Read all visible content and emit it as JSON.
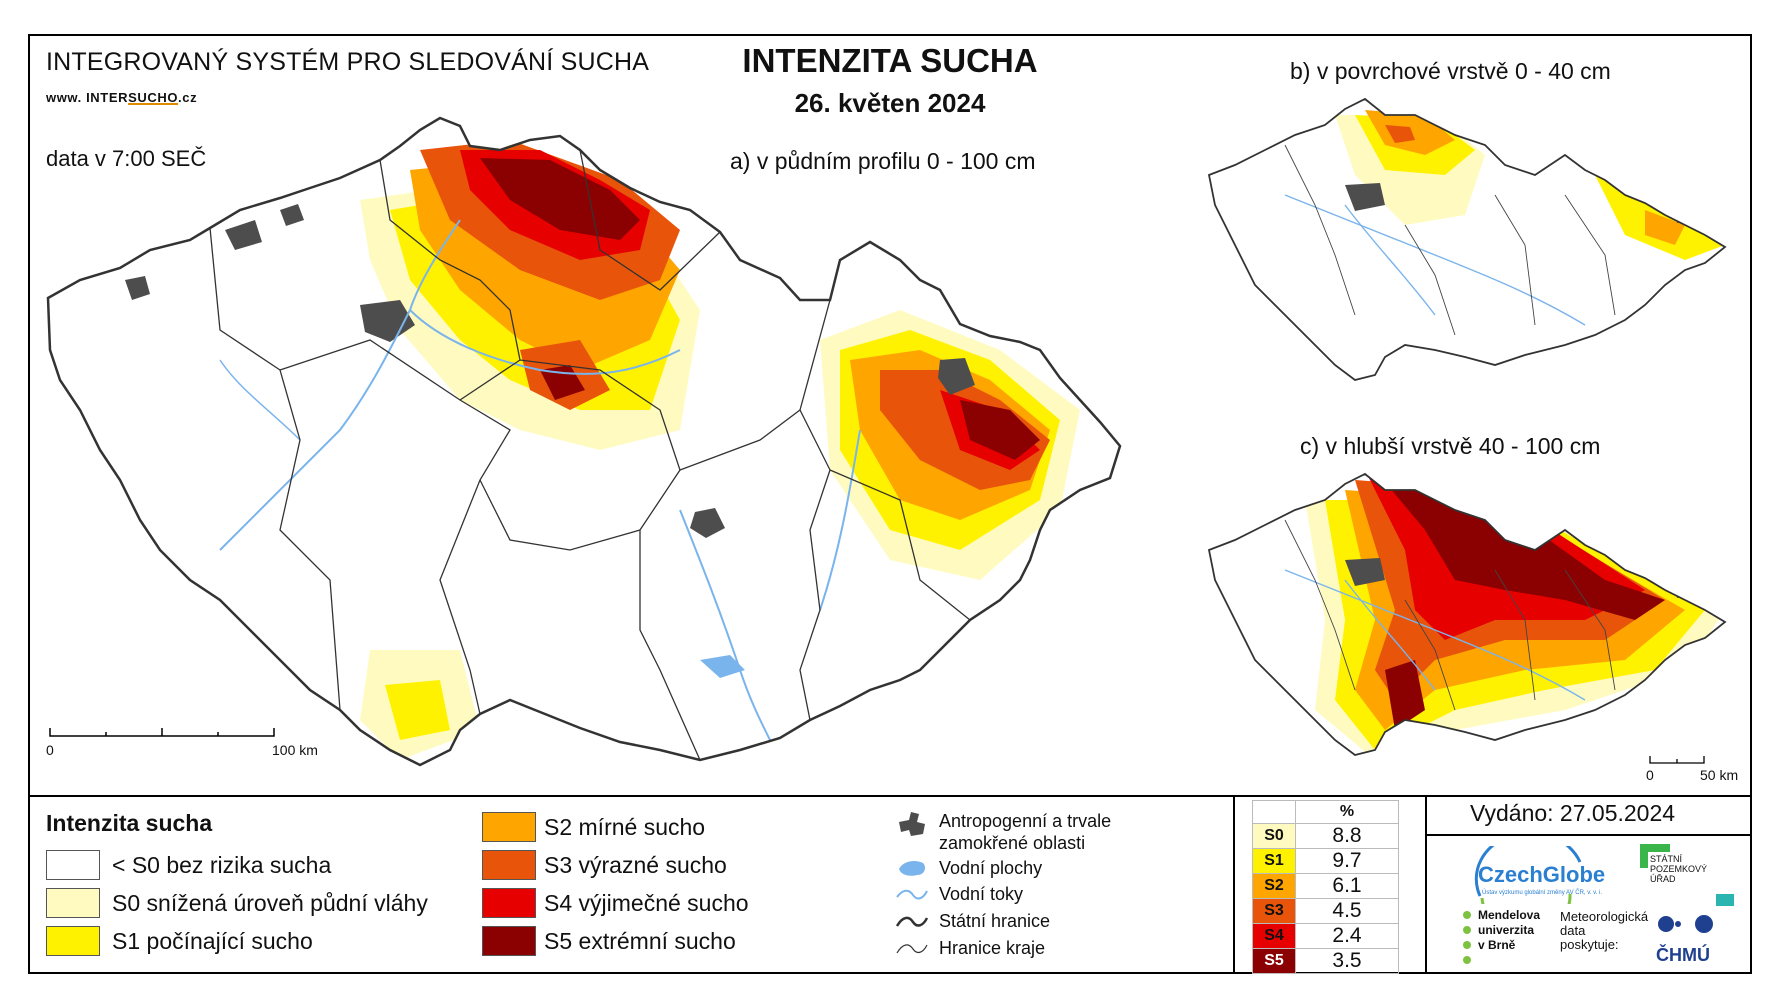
{
  "header": {
    "system_name": "INTEGROVANÝ SYSTÉM PRO SLEDOVÁNÍ SUCHA",
    "website_prefix": "www. INTER",
    "website_mid": "SUCHO",
    "website_suffix": ".cz",
    "data_time": "data v 7:00 SEČ",
    "title": "INTENZITA SUCHA",
    "date": "26. květen 2024"
  },
  "maps": {
    "main_label": "a) v půdním profilu 0 - 100 cm",
    "surface_label": "b) v povrchové vrstvě 0 - 40 cm",
    "deep_label": "c) v hlubší vrstvě 40 - 100 cm",
    "main_scale_start": "0",
    "main_scale_end": "100 km",
    "inset_scale_start": "0",
    "inset_scale_end": "50 km"
  },
  "legend": {
    "title": "Intenzita sucha",
    "classes": [
      {
        "label": "< S0 bez rizika sucha",
        "color": "#ffffff"
      },
      {
        "label": "S0 snížená úroveň půdní vláhy",
        "color": "#fffbc0"
      },
      {
        "label": "S1 počínající sucho",
        "color": "#fff200"
      },
      {
        "label": "S2 mírné sucho",
        "color": "#ffa500"
      },
      {
        "label": "S3 výrazné sucho",
        "color": "#e8540a"
      },
      {
        "label": "S4 výjimečné sucho",
        "color": "#e60000"
      },
      {
        "label": "S5 extrémní sucho",
        "color": "#8b0000"
      }
    ],
    "symbols": [
      {
        "label": "Antropogenní a trvale zamokřené oblasti",
        "icon": "dark-gray-area-icon"
      },
      {
        "label": "Vodní plochy",
        "icon": "water-body-icon"
      },
      {
        "label": "Vodní toky",
        "icon": "river-icon"
      },
      {
        "label": "Státní hranice",
        "icon": "state-border-icon"
      },
      {
        "label": "Hranice kraje",
        "icon": "region-border-icon"
      }
    ]
  },
  "percent_table": {
    "header": "%",
    "rows": [
      {
        "cls": "S0",
        "value": "8.8",
        "color": "#fffbc0"
      },
      {
        "cls": "S1",
        "value": "9.7",
        "color": "#fff200"
      },
      {
        "cls": "S2",
        "value": "6.1",
        "color": "#ffa500"
      },
      {
        "cls": "S3",
        "value": "4.5",
        "color": "#e8540a"
      },
      {
        "cls": "S4",
        "value": "2.4",
        "color": "#e60000"
      },
      {
        "cls": "S5",
        "value": "3.5",
        "color": "#8b0000"
      }
    ]
  },
  "footer": {
    "issued": "Vydáno: 27.05.2024",
    "czechglobe": "CzechGlobe",
    "czechglobe_sub": "Ústav výzkumu globální změny AV ČR, v. v. i.",
    "spu": "STÁTNÍ POZEMKOVÝ ÚŘAD",
    "mendel_1": "Mendelova",
    "mendel_2": "univerzita",
    "mendel_3": "v Brně",
    "meteo_1": "Meteorologická",
    "meteo_2": "data",
    "meteo_3": "poskytuje:",
    "chmu": "ČHMÚ"
  }
}
